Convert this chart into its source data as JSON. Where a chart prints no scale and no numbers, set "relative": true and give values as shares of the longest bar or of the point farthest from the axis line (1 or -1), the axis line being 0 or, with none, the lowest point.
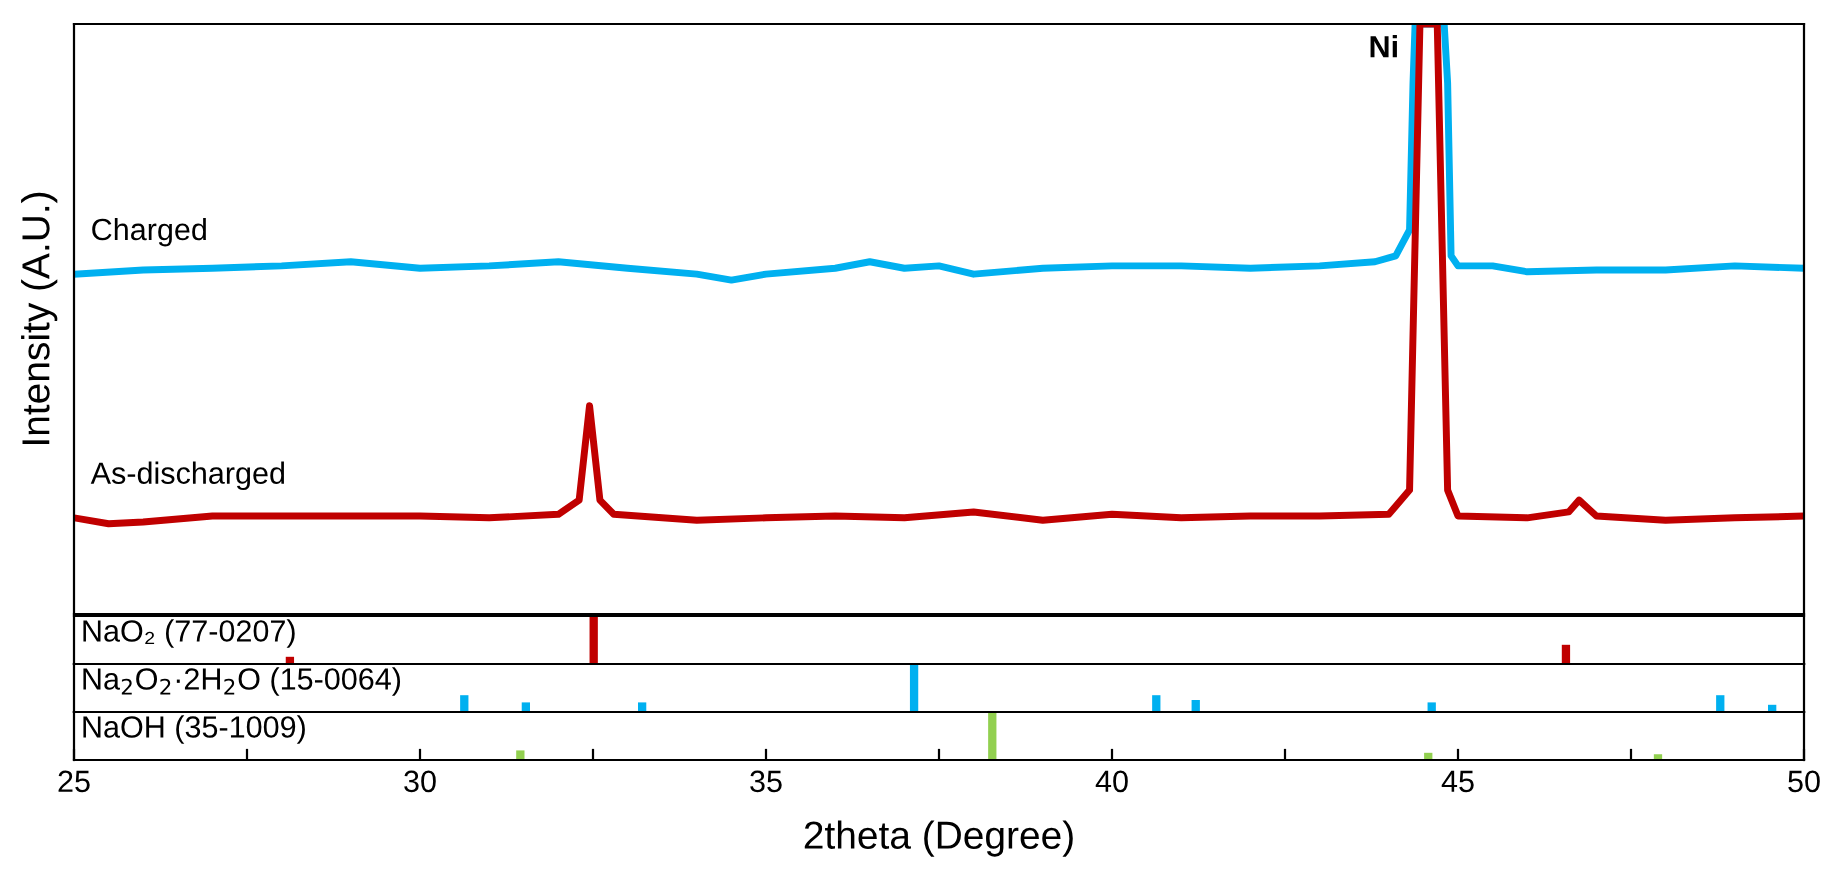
{
  "chart_data": [
    {
      "type": "line",
      "relative": true,
      "ylabel": "Intensity (A.U.)",
      "xlim": [
        25,
        50
      ],
      "tick_labels": false,
      "marker": "none",
      "line_style": "solid",
      "annotations": [
        {
          "text": "Ni",
          "x": 44.55,
          "y": 1
        }
      ],
      "series": [
        {
          "name": "Charged",
          "color": "#00b0f0",
          "x": [
            25,
            26,
            27,
            28,
            29,
            30,
            31,
            32,
            33,
            34,
            34.5,
            35,
            36,
            36.5,
            37,
            37.5,
            38,
            39,
            40,
            41,
            42,
            43,
            43.8,
            44.1,
            44.3,
            44.35,
            44.38,
            44.8,
            44.85,
            44.9,
            45,
            45.5,
            46,
            47,
            48,
            49,
            50
          ],
          "values": [
            0.576,
            0.583,
            0.586,
            0.59,
            0.597,
            0.586,
            0.59,
            0.597,
            0.586,
            0.576,
            0.566,
            0.576,
            0.586,
            0.597,
            0.586,
            0.59,
            0.576,
            0.586,
            0.59,
            0.59,
            0.586,
            0.59,
            0.597,
            0.607,
            0.651,
            0.9,
            1,
            1,
            0.9,
            0.607,
            0.59,
            0.59,
            0.58,
            0.583,
            0.583,
            0.59,
            0.586
          ]
        },
        {
          "name": "As-discharged",
          "color": "#c00000",
          "x": [
            25,
            25.5,
            26,
            27,
            28,
            29,
            30,
            31,
            32,
            32.3,
            32.45,
            32.6,
            32.8,
            33.5,
            34,
            35,
            36,
            37,
            38,
            39,
            40,
            41,
            42,
            43,
            44,
            44.3,
            44.45,
            44.7,
            44.85,
            45,
            46,
            46.6,
            46.75,
            47,
            48,
            49,
            50
          ],
          "values": [
            0.163,
            0.153,
            0.156,
            0.166,
            0.166,
            0.166,
            0.166,
            0.163,
            0.169,
            0.193,
            0.353,
            0.193,
            0.169,
            0.163,
            0.159,
            0.163,
            0.166,
            0.163,
            0.173,
            0.159,
            0.169,
            0.163,
            0.166,
            0.166,
            0.169,
            0.21,
            1,
            1,
            0.21,
            0.166,
            0.163,
            0.173,
            0.193,
            0.166,
            0.159,
            0.163,
            0.166
          ]
        }
      ]
    },
    {
      "type": "bar",
      "relative": true,
      "title": "NaO₂ (77-0207)",
      "xlim": [
        25,
        50
      ],
      "tick_labels": false,
      "color": "#c00000",
      "x": [
        28.12,
        32.51,
        46.56
      ],
      "values": [
        0.15,
        1,
        0.4
      ]
    },
    {
      "type": "bar",
      "relative": true,
      "title": "Na$_{2}$O$_{2}$·2H$_{2}$O (15-0064)",
      "xlim": [
        25,
        50
      ],
      "tick_labels": false,
      "color": "#00b0f0",
      "x": [
        30.64,
        31.53,
        33.21,
        37.14,
        40.64,
        41.21,
        44.62,
        48.79,
        49.54
      ],
      "values": [
        0.35,
        0.2,
        0.2,
        1,
        0.35,
        0.25,
        0.2,
        0.35,
        0.15
      ]
    },
    {
      "type": "bar",
      "relative": true,
      "title": "NaOH (35-1009)",
      "xlabel": "2theta (Degree)",
      "xlim": [
        25,
        50
      ],
      "xticks": [
        25,
        {
          "value": 27.5,
          "label": null
        },
        30,
        {
          "value": 32.5,
          "label": null
        },
        35,
        {
          "value": 37.5,
          "label": null
        },
        40,
        {
          "value": 42.5,
          "label": null
        },
        45,
        {
          "value": 47.5,
          "label": null
        },
        50
      ],
      "tick_labels": "x",
      "color": "#92d050",
      "x": [
        31.45,
        38.27,
        44.57,
        47.89
      ],
      "values": [
        0.2,
        1,
        0.15,
        0.12
      ]
    }
  ]
}
